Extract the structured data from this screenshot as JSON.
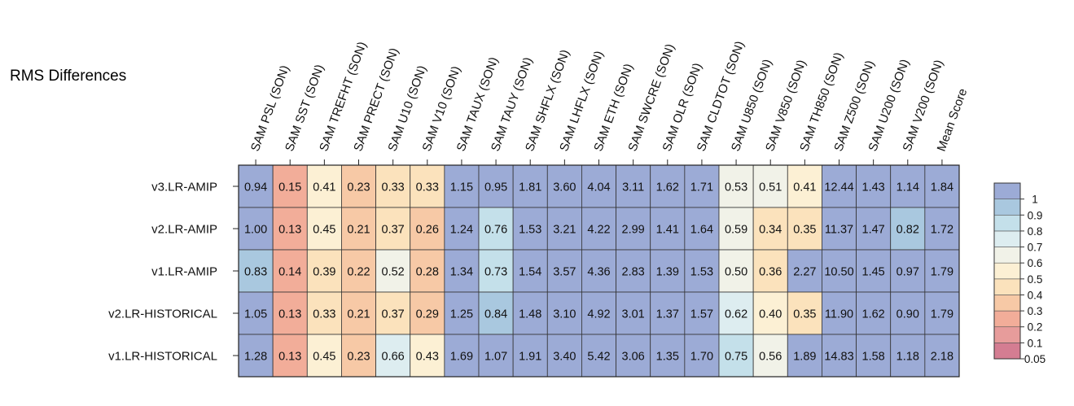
{
  "chart_data": {
    "type": "heatmap",
    "title": "RMS Differences",
    "columns": [
      "SAM PSL (SON)",
      "SAM SST (SON)",
      "SAM TREFHT (SON)",
      "SAM PRECT (SON)",
      "SAM U10 (SON)",
      "SAM V10 (SON)",
      "SAM TAUX (SON)",
      "SAM TAUY (SON)",
      "SAM SHFLX (SON)",
      "SAM LHFLX (SON)",
      "SAM ETH (SON)",
      "SAM SWCRE (SON)",
      "SAM OLR (SON)",
      "SAM CLDTOT (SON)",
      "SAM U850 (SON)",
      "SAM V850 (SON)",
      "SAM TH850 (SON)",
      "SAM Z500 (SON)",
      "SAM U200 (SON)",
      "SAM V200 (SON)",
      "Mean Score"
    ],
    "rows": [
      "v3.LR-AMIP",
      "v2.LR-AMIP",
      "v1.LR-AMIP",
      "v2.LR-HISTORICAL",
      "v1.LR-HISTORICAL"
    ],
    "values": [
      [
        0.94,
        0.15,
        0.41,
        0.23,
        0.33,
        0.33,
        1.15,
        0.95,
        1.81,
        3.6,
        4.04,
        3.11,
        1.62,
        1.71,
        0.53,
        0.51,
        0.41,
        12.44,
        1.43,
        1.14,
        1.84
      ],
      [
        1.0,
        0.13,
        0.45,
        0.21,
        0.37,
        0.26,
        1.24,
        0.76,
        1.53,
        3.21,
        4.22,
        2.99,
        1.41,
        1.64,
        0.59,
        0.34,
        0.35,
        11.37,
        1.47,
        0.82,
        1.72
      ],
      [
        0.83,
        0.14,
        0.39,
        0.22,
        0.52,
        0.28,
        1.34,
        0.73,
        1.54,
        3.57,
        4.36,
        2.83,
        1.39,
        1.53,
        0.5,
        0.36,
        2.27,
        10.5,
        1.45,
        0.97,
        1.79
      ],
      [
        1.05,
        0.13,
        0.33,
        0.21,
        0.37,
        0.29,
        1.25,
        0.84,
        1.48,
        3.1,
        4.92,
        3.01,
        1.37,
        1.57,
        0.62,
        0.4,
        0.35,
        11.9,
        1.62,
        0.9,
        1.79
      ],
      [
        1.28,
        0.13,
        0.45,
        0.23,
        0.66,
        0.43,
        1.69,
        1.07,
        1.91,
        3.4,
        5.42,
        3.06,
        1.35,
        1.7,
        0.75,
        0.56,
        1.89,
        14.83,
        1.58,
        1.18,
        2.18
      ]
    ],
    "colorbar": {
      "labels": [
        "1",
        "0.9",
        "0.8",
        "0.7",
        "0.6",
        "0.5",
        "0.4",
        "0.3",
        "0.2",
        "0.1",
        "0.05"
      ],
      "bins": [
        {
          "color": "#D47D92"
        },
        {
          "color": "#E79C9B"
        },
        {
          "color": "#F2AD99"
        },
        {
          "color": "#F7C9A6"
        },
        {
          "color": "#FBE2BC"
        },
        {
          "color": "#FCF0D4"
        },
        {
          "color": "#F1F2E8"
        },
        {
          "color": "#DDEDF0"
        },
        {
          "color": "#C4E0EA"
        },
        {
          "color": "#A9C8DF"
        },
        {
          "color": "#9CABD6"
        }
      ]
    }
  }
}
